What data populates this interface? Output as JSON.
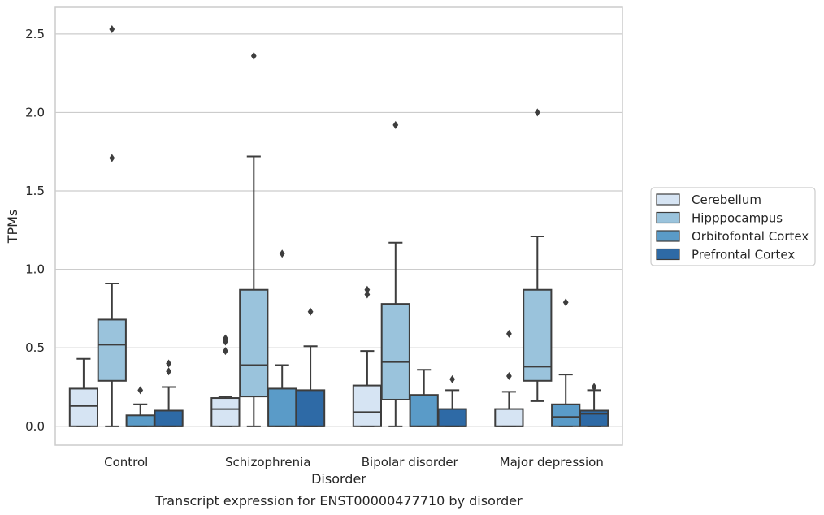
{
  "chart_data": {
    "type": "box",
    "caption": "Transcript expression for ENST00000477710 by disorder",
    "xlabel": "Disorder",
    "ylabel": "TPMs",
    "ylim": [
      -0.12,
      2.67
    ],
    "yticks": [
      "0.0",
      "0.5",
      "1.0",
      "1.5",
      "2.0",
      "2.5"
    ],
    "ytick_values": [
      0,
      0.5,
      1.0,
      1.5,
      2.0,
      2.5
    ],
    "grid": true,
    "legend_position": "right",
    "categories": [
      "Control",
      "Schizophrenia",
      "Bipolar disorder",
      "Major depression"
    ],
    "series": [
      {
        "name": "Cerebellum",
        "color": "#d6e4f3",
        "boxes": [
          {
            "whislo": 0.0,
            "q1": 0.0,
            "med": 0.13,
            "q3": 0.24,
            "whishi": 0.43,
            "fliers": []
          },
          {
            "whislo": 0.0,
            "q1": 0.0,
            "med": 0.11,
            "q3": 0.18,
            "whishi": 0.19,
            "fliers": [
              0.48,
              0.54,
              0.56
            ]
          },
          {
            "whislo": 0.0,
            "q1": 0.0,
            "med": 0.09,
            "q3": 0.26,
            "whishi": 0.48,
            "fliers": [
              0.84,
              0.87
            ]
          },
          {
            "whislo": 0.0,
            "q1": 0.0,
            "med": 0.0,
            "q3": 0.11,
            "whishi": 0.22,
            "fliers": [
              0.32,
              0.59
            ]
          }
        ]
      },
      {
        "name": "Hipppocampus",
        "color": "#9ac3dc",
        "boxes": [
          {
            "whislo": 0.0,
            "q1": 0.29,
            "med": 0.52,
            "q3": 0.68,
            "whishi": 0.91,
            "fliers": [
              1.71,
              2.53
            ]
          },
          {
            "whislo": 0.0,
            "q1": 0.19,
            "med": 0.39,
            "q3": 0.87,
            "whishi": 1.72,
            "fliers": [
              2.36
            ]
          },
          {
            "whislo": 0.0,
            "q1": 0.17,
            "med": 0.41,
            "q3": 0.78,
            "whishi": 1.17,
            "fliers": [
              1.92
            ]
          },
          {
            "whislo": 0.16,
            "q1": 0.29,
            "med": 0.38,
            "q3": 0.87,
            "whishi": 1.21,
            "fliers": [
              2.0
            ]
          }
        ]
      },
      {
        "name": "Orbitofontal Cortex",
        "color": "#5a9bc8",
        "boxes": [
          {
            "whislo": 0.0,
            "q1": 0.0,
            "med": 0.0,
            "q3": 0.07,
            "whishi": 0.14,
            "fliers": [
              0.23
            ]
          },
          {
            "whislo": 0.0,
            "q1": 0.0,
            "med": 0.0,
            "q3": 0.24,
            "whishi": 0.39,
            "fliers": [
              1.1
            ]
          },
          {
            "whislo": 0.0,
            "q1": 0.0,
            "med": 0.0,
            "q3": 0.2,
            "whishi": 0.36,
            "fliers": []
          },
          {
            "whislo": 0.0,
            "q1": 0.0,
            "med": 0.06,
            "q3": 0.14,
            "whishi": 0.33,
            "fliers": [
              0.79
            ]
          }
        ]
      },
      {
        "name": "Prefrontal Cortex",
        "color": "#2e6aa6",
        "boxes": [
          {
            "whislo": 0.0,
            "q1": 0.0,
            "med": 0.0,
            "q3": 0.1,
            "whishi": 0.25,
            "fliers": [
              0.35,
              0.4
            ]
          },
          {
            "whislo": 0.0,
            "q1": 0.0,
            "med": 0.0,
            "q3": 0.23,
            "whishi": 0.51,
            "fliers": [
              0.73
            ]
          },
          {
            "whislo": 0.0,
            "q1": 0.0,
            "med": 0.0,
            "q3": 0.11,
            "whishi": 0.23,
            "fliers": [
              0.3
            ]
          },
          {
            "whislo": 0.0,
            "q1": 0.0,
            "med": 0.08,
            "q3": 0.1,
            "whishi": 0.23,
            "fliers": [
              0.25
            ]
          }
        ]
      }
    ]
  }
}
